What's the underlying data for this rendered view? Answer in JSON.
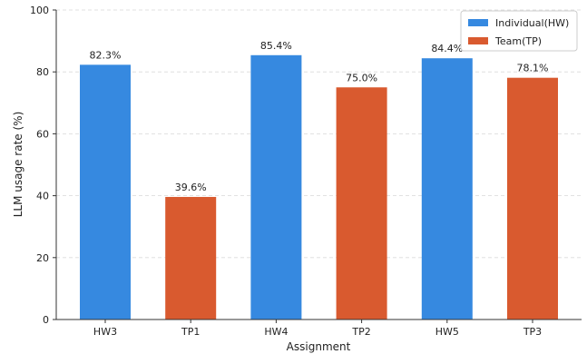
{
  "chart_data": {
    "type": "bar",
    "categories": [
      "HW3",
      "TP1",
      "HW4",
      "TP2",
      "HW5",
      "TP3"
    ],
    "values": [
      82.3,
      39.6,
      85.4,
      75.0,
      84.4,
      78.1
    ],
    "value_labels": [
      "82.3%",
      "39.6%",
      "85.4%",
      "75.0%",
      "84.4%",
      "78.1%"
    ],
    "bar_series": [
      "Individual(HW)",
      "Team(TP)",
      "Individual(HW)",
      "Team(TP)",
      "Individual(HW)",
      "Team(TP)"
    ],
    "series_colors": {
      "Individual(HW)": "#3689e0",
      "Team(TP)": "#d95a2f"
    },
    "legend": [
      {
        "name": "Individual(HW)",
        "color": "#3689e0"
      },
      {
        "name": "Team(TP)",
        "color": "#d95a2f"
      }
    ],
    "legend_position": "top-right",
    "xlabel": "Assignment",
    "ylabel": "LLM usage rate (%)",
    "ylim": [
      0,
      100
    ],
    "yticks": [
      0,
      20,
      40,
      60,
      80,
      100
    ],
    "grid": "y-dashed"
  }
}
